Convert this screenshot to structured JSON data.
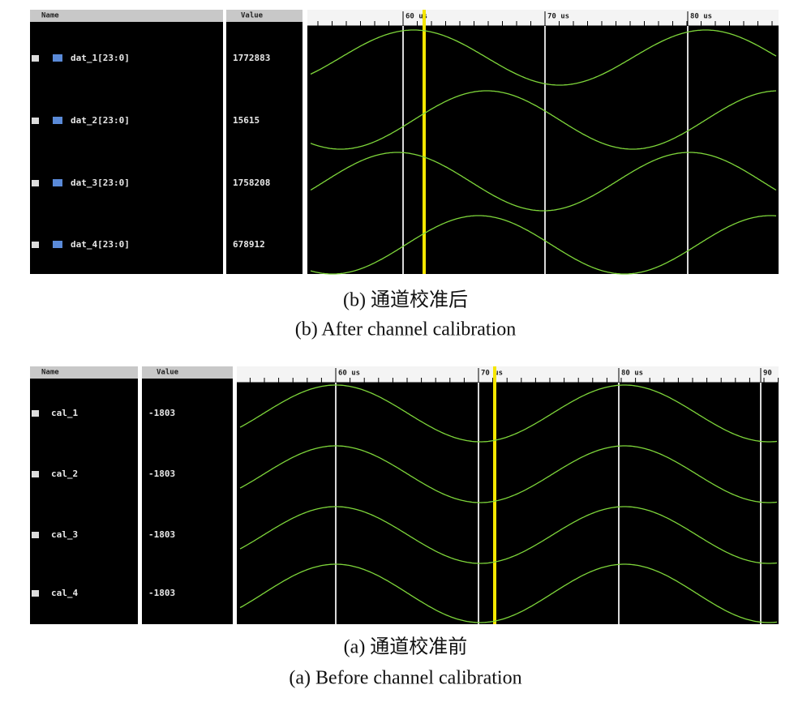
{
  "panels": [
    {
      "columns": {
        "name": "Name",
        "value": "Value"
      },
      "time_labels": [
        "60 us",
        "70 us",
        "80 us"
      ],
      "signals": [
        {
          "name": "dat_1[23:0]",
          "value": "1772883"
        },
        {
          "name": "dat_2[23:0]",
          "value": "15615"
        },
        {
          "name": "dat_3[23:0]",
          "value": "1758208"
        },
        {
          "name": "dat_4[23:0]",
          "value": "678912"
        }
      ],
      "caption_cn": "(b) 通道校准后",
      "caption_en": "(b) After channel calibration"
    },
    {
      "columns": {
        "name": "Name",
        "value": "Value"
      },
      "time_labels": [
        "60 us",
        "70 us",
        "80 us",
        "90"
      ],
      "signals": [
        {
          "name": "cal_1",
          "value": "-1803"
        },
        {
          "name": "cal_2",
          "value": "-1803"
        },
        {
          "name": "cal_3",
          "value": "-1803"
        },
        {
          "name": "cal_4",
          "value": "-1803"
        }
      ],
      "caption_cn": "(a) 通道校准前",
      "caption_en": "(a) Before channel calibration"
    }
  ]
}
